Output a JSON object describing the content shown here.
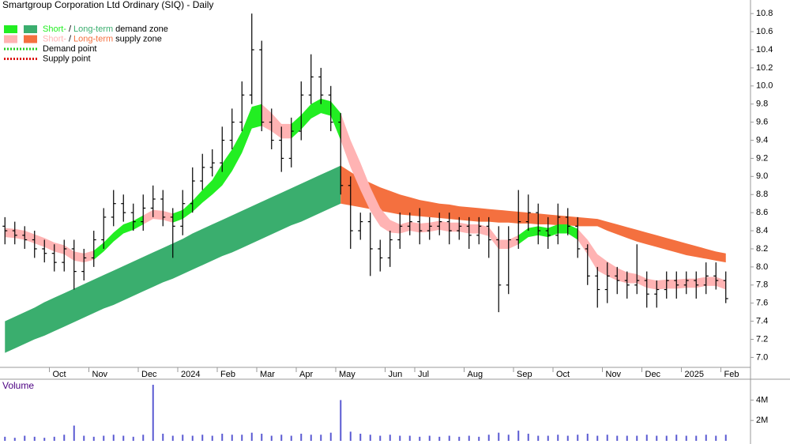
{
  "chart_data": {
    "type": "ohlc",
    "title": "Smartgroup Corporation Ltd Ordinary (SIQ) - Daily",
    "categories": [
      null,
      null,
      null,
      null,
      null,
      "Oct",
      null,
      null,
      null,
      "Nov",
      null,
      null,
      null,
      null,
      "Dec",
      null,
      null,
      null,
      "2024",
      null,
      null,
      null,
      "Feb",
      null,
      null,
      null,
      "Mar",
      null,
      null,
      null,
      "Apr",
      null,
      null,
      null,
      "May",
      null,
      null,
      null,
      null,
      "Jun",
      null,
      null,
      "Jul",
      null,
      null,
      null,
      null,
      "Aug",
      null,
      null,
      null,
      null,
      "Sep",
      null,
      null,
      null,
      "Oct",
      null,
      null,
      null,
      null,
      "Nov",
      null,
      null,
      null,
      "Dec",
      null,
      null,
      null,
      "2025",
      null,
      null,
      null,
      "Feb"
    ],
    "open": [
      8.45,
      8.4,
      8.35,
      8.3,
      8.2,
      8.15,
      8.05,
      8.2,
      7.95,
      8.1,
      8.3,
      8.55,
      8.7,
      8.6,
      8.5,
      8.65,
      8.75,
      8.55,
      8.45,
      8.7,
      8.95,
      9.1,
      9.15,
      9.4,
      9.6,
      9.9,
      10.4,
      9.6,
      9.4,
      9.2,
      9.5,
      9.9,
      10.1,
      9.9,
      9.6,
      8.9,
      8.4,
      8.5,
      8.2,
      8.1,
      8.3,
      8.45,
      8.5,
      8.4,
      8.45,
      8.5,
      8.4,
      8.45,
      8.35,
      8.45,
      8.3,
      7.8,
      8.3,
      8.5,
      8.6,
      8.4,
      8.35,
      8.55,
      8.45,
      8.2,
      7.9,
      7.75,
      7.9,
      7.85,
      7.8,
      7.85,
      7.7,
      7.75,
      7.85,
      7.8,
      7.85,
      7.8,
      7.9,
      7.85
    ],
    "high": [
      8.55,
      8.5,
      8.45,
      8.4,
      8.3,
      8.25,
      8.3,
      8.3,
      8.2,
      8.4,
      8.65,
      8.85,
      8.8,
      8.7,
      8.8,
      8.9,
      8.85,
      8.65,
      8.85,
      9.1,
      9.25,
      9.3,
      9.55,
      9.75,
      10.05,
      10.8,
      10.5,
      9.75,
      9.55,
      9.65,
      10.05,
      10.35,
      10.2,
      10.0,
      9.7,
      9.0,
      8.6,
      8.6,
      8.3,
      8.4,
      8.6,
      8.6,
      8.65,
      8.55,
      8.6,
      8.6,
      8.55,
      8.55,
      8.55,
      8.55,
      8.45,
      8.45,
      8.85,
      8.8,
      8.7,
      8.55,
      8.7,
      8.65,
      8.55,
      8.25,
      8.0,
      8.05,
      8.0,
      7.95,
      8.25,
      7.95,
      7.85,
      7.95,
      7.95,
      7.95,
      7.95,
      8.05,
      8.05,
      7.95
    ],
    "low": [
      8.25,
      8.25,
      8.2,
      8.1,
      8.05,
      7.95,
      7.95,
      7.75,
      7.85,
      8.0,
      8.2,
      8.45,
      8.5,
      8.4,
      8.4,
      8.55,
      8.45,
      8.1,
      8.35,
      8.6,
      8.85,
      9.0,
      9.05,
      9.3,
      9.5,
      9.8,
      9.5,
      9.3,
      9.05,
      9.1,
      9.4,
      9.8,
      9.8,
      9.5,
      8.8,
      8.2,
      8.3,
      7.9,
      7.95,
      8.0,
      8.2,
      8.35,
      8.25,
      8.3,
      8.35,
      8.25,
      8.3,
      8.2,
      8.25,
      8.1,
      7.5,
      7.7,
      8.2,
      8.4,
      8.25,
      8.2,
      8.25,
      8.35,
      8.1,
      7.8,
      7.55,
      7.6,
      7.7,
      7.65,
      7.7,
      7.55,
      7.55,
      7.65,
      7.65,
      7.7,
      7.65,
      7.7,
      7.75,
      7.6
    ],
    "close": [
      8.4,
      8.35,
      8.3,
      8.2,
      8.15,
      8.05,
      8.2,
      7.95,
      8.1,
      8.3,
      8.55,
      8.7,
      8.6,
      8.5,
      8.65,
      8.75,
      8.55,
      8.45,
      8.7,
      8.95,
      9.1,
      9.15,
      9.4,
      9.6,
      9.9,
      10.4,
      9.6,
      9.4,
      9.2,
      9.5,
      9.9,
      10.1,
      9.9,
      9.6,
      8.9,
      8.4,
      8.5,
      8.2,
      8.1,
      8.3,
      8.45,
      8.5,
      8.4,
      8.45,
      8.5,
      8.4,
      8.45,
      8.35,
      8.45,
      8.3,
      7.8,
      8.3,
      8.5,
      8.6,
      8.4,
      8.35,
      8.55,
      8.45,
      8.2,
      7.9,
      7.75,
      7.9,
      7.85,
      7.8,
      7.85,
      7.7,
      7.75,
      7.85,
      7.8,
      7.85,
      7.8,
      7.9,
      7.85,
      7.65
    ],
    "color": "#000000",
    "ylim": [
      6.89,
      10.95
    ],
    "yticks": [
      {
        "value": 7,
        "label": "7.0"
      },
      7.2,
      7.4,
      7.6,
      7.8,
      {
        "value": 8,
        "label": "8.0"
      },
      8.2,
      8.4,
      8.6,
      8.8,
      {
        "value": 9,
        "label": "9.0"
      },
      9.2,
      9.4,
      9.6,
      9.8,
      {
        "value": 10,
        "label": "10.0"
      },
      10.2,
      10.4,
      10.6,
      10.8
    ],
    "zones": [
      {
        "row": "demand zone",
        "separator": "/",
        "short": {
          "name": "Short-",
          "color": "#22ee22",
          "lower": [
            null,
            null,
            null,
            null,
            null,
            null,
            null,
            null,
            null,
            8.08,
            8.17,
            8.28,
            8.37,
            8.41,
            8.47,
            null,
            null,
            8.49,
            8.53,
            8.61,
            8.71,
            8.8,
            8.9,
            9.06,
            9.26,
            9.53,
            9.56,
            null,
            null,
            9.42,
            9.52,
            9.64,
            9.7,
            9.67,
            9.4,
            null,
            null,
            null,
            null,
            null,
            null,
            null,
            null,
            null,
            null,
            null,
            null,
            null,
            null,
            null,
            null,
            null,
            8.25,
            8.33,
            8.35,
            8.33,
            8.37,
            8.37,
            8.3,
            null,
            null,
            null,
            null,
            null,
            null,
            null,
            null,
            null,
            null,
            null,
            null,
            null,
            null,
            null
          ],
          "upper": [
            null,
            null,
            null,
            null,
            null,
            null,
            null,
            null,
            null,
            8.18,
            8.27,
            8.38,
            8.47,
            8.51,
            8.57,
            null,
            null,
            8.59,
            8.63,
            8.73,
            8.85,
            8.96,
            9.14,
            9.3,
            9.5,
            9.77,
            9.8,
            null,
            null,
            9.58,
            9.68,
            9.8,
            9.86,
            9.83,
            9.7,
            null,
            null,
            null,
            null,
            null,
            null,
            null,
            null,
            null,
            null,
            null,
            null,
            null,
            null,
            null,
            null,
            null,
            8.35,
            8.43,
            8.45,
            8.43,
            8.47,
            8.47,
            8.42,
            null,
            null,
            null,
            null,
            null,
            null,
            null,
            null,
            null,
            null,
            null,
            null,
            null,
            null,
            null
          ]
        },
        "long": {
          "name": "Long-term",
          "color": "#3aae6e",
          "lower": [
            7.05,
            7.1,
            7.15,
            7.2,
            7.24,
            7.29,
            7.34,
            7.39,
            7.44,
            7.49,
            7.54,
            7.58,
            7.63,
            7.68,
            7.73,
            7.78,
            7.83,
            7.87,
            7.92,
            7.97,
            8.02,
            8.07,
            8.12,
            8.16,
            8.21,
            8.26,
            8.31,
            8.36,
            8.41,
            8.46,
            8.5,
            8.55,
            8.6,
            8.65,
            8.7,
            null,
            null,
            null,
            null,
            null,
            null,
            null,
            null,
            null,
            null,
            null,
            null,
            null,
            null,
            null,
            null,
            null,
            null,
            null,
            null,
            null,
            null,
            null,
            null,
            null,
            null,
            null,
            null,
            null,
            null,
            null,
            null,
            null,
            null,
            null,
            null,
            null,
            null,
            null
          ],
          "upper": [
            7.4,
            7.45,
            7.5,
            7.55,
            7.61,
            7.66,
            7.71,
            7.76,
            7.81,
            7.86,
            7.91,
            7.96,
            8.01,
            8.06,
            8.11,
            8.16,
            8.21,
            8.26,
            8.31,
            8.37,
            8.42,
            8.47,
            8.52,
            8.57,
            8.62,
            8.67,
            8.72,
            8.77,
            8.82,
            8.87,
            8.92,
            8.97,
            9.02,
            9.07,
            9.12,
            null,
            null,
            null,
            null,
            null,
            null,
            null,
            null,
            null,
            null,
            null,
            null,
            null,
            null,
            null,
            null,
            null,
            null,
            null,
            null,
            null,
            null,
            null,
            null,
            null,
            null,
            null,
            null,
            null,
            null,
            null,
            null,
            null,
            null,
            null,
            null,
            null,
            null,
            null
          ]
        }
      },
      {
        "row": "supply zone",
        "separator": "/",
        "short": {
          "name": "Short-",
          "color": "#ffb3b3",
          "lower": [
            8.33,
            8.32,
            8.3,
            8.26,
            8.22,
            8.17,
            8.14,
            8.07,
            8.05,
            8.08,
            null,
            null,
            null,
            null,
            8.47,
            8.53,
            8.52,
            8.49,
            null,
            null,
            null,
            null,
            null,
            null,
            null,
            null,
            9.56,
            9.5,
            9.42,
            9.42,
            null,
            null,
            null,
            null,
            9.4,
            9.1,
            8.85,
            8.62,
            8.45,
            8.38,
            8.37,
            8.4,
            8.38,
            8.39,
            8.41,
            8.39,
            8.39,
            8.37,
            8.37,
            8.34,
            8.2,
            8.2,
            8.25,
            null,
            null,
            null,
            null,
            null,
            8.3,
            8.14,
            7.96,
            7.9,
            7.85,
            7.82,
            7.82,
            7.77,
            7.75,
            7.76,
            7.76,
            7.77,
            7.77,
            7.79,
            7.79,
            7.75
          ],
          "upper": [
            8.43,
            8.42,
            8.4,
            8.36,
            8.32,
            8.27,
            8.24,
            8.17,
            8.15,
            8.18,
            null,
            null,
            null,
            null,
            8.57,
            8.63,
            8.62,
            8.59,
            null,
            null,
            null,
            null,
            null,
            null,
            null,
            null,
            9.8,
            9.7,
            9.58,
            9.58,
            null,
            null,
            null,
            null,
            9.7,
            9.4,
            9.15,
            8.88,
            8.65,
            8.52,
            8.47,
            8.5,
            8.48,
            8.49,
            8.51,
            8.49,
            8.49,
            8.47,
            8.47,
            8.44,
            8.3,
            8.3,
            8.35,
            null,
            null,
            null,
            null,
            null,
            8.42,
            8.3,
            8.14,
            8.06,
            7.99,
            7.94,
            7.92,
            7.87,
            7.85,
            7.86,
            7.86,
            7.87,
            7.87,
            7.89,
            7.89,
            7.85
          ]
        },
        "long": {
          "name": "Long-term",
          "color": "#f4703f",
          "lower": [
            null,
            null,
            null,
            null,
            null,
            null,
            null,
            null,
            null,
            null,
            null,
            null,
            null,
            null,
            null,
            null,
            null,
            null,
            null,
            null,
            null,
            null,
            null,
            null,
            null,
            null,
            null,
            null,
            null,
            null,
            null,
            null,
            null,
            null,
            8.7,
            8.68,
            8.66,
            8.64,
            8.62,
            8.6,
            8.58,
            8.57,
            8.56,
            8.55,
            8.54,
            8.53,
            8.52,
            8.51,
            8.5,
            8.5,
            8.49,
            8.49,
            8.48,
            8.48,
            8.47,
            8.47,
            8.46,
            8.46,
            8.45,
            8.45,
            8.45,
            8.4,
            8.36,
            8.32,
            8.28,
            8.25,
            8.22,
            8.19,
            8.16,
            8.13,
            8.11,
            8.09,
            8.07,
            8.05
          ],
          "upper": [
            null,
            null,
            null,
            null,
            null,
            null,
            null,
            null,
            null,
            null,
            null,
            null,
            null,
            null,
            null,
            null,
            null,
            null,
            null,
            null,
            null,
            null,
            null,
            null,
            null,
            null,
            null,
            null,
            null,
            null,
            null,
            null,
            null,
            null,
            9.12,
            9.05,
            8.98,
            8.93,
            8.88,
            8.84,
            8.8,
            8.77,
            8.74,
            8.72,
            8.7,
            8.69,
            8.67,
            8.66,
            8.65,
            8.64,
            8.63,
            8.62,
            8.61,
            8.6,
            8.59,
            8.58,
            8.57,
            8.56,
            8.55,
            8.54,
            8.53,
            8.5,
            8.47,
            8.44,
            8.41,
            8.38,
            8.35,
            8.32,
            8.29,
            8.26,
            8.23,
            8.2,
            8.17,
            8.15
          ]
        }
      }
    ],
    "points": [
      {
        "name": "Demand point",
        "color": "#22cc22"
      },
      {
        "name": "Supply point",
        "color": "#dd1111"
      }
    ],
    "volume": {
      "title": "Volume",
      "color": "#5a5ad2",
      "values": [
        0.4,
        0.3,
        0.5,
        0.4,
        0.3,
        0.4,
        0.6,
        1.5,
        0.5,
        0.4,
        0.5,
        0.6,
        0.5,
        0.4,
        0.6,
        5.5,
        0.7,
        0.5,
        0.6,
        0.5,
        0.6,
        0.5,
        0.7,
        0.6,
        0.6,
        0.8,
        0.7,
        0.5,
        0.6,
        0.5,
        0.7,
        0.6,
        0.6,
        0.8,
        4.0,
        0.9,
        0.7,
        0.6,
        0.5,
        0.6,
        0.5,
        0.5,
        0.4,
        0.5,
        0.4,
        0.5,
        0.4,
        0.5,
        0.4,
        0.6,
        0.8,
        0.6,
        1.0,
        0.7,
        0.5,
        0.5,
        0.6,
        0.5,
        0.6,
        0.7,
        0.5,
        0.6,
        0.5,
        0.5,
        0.5,
        0.6,
        0.5,
        0.5,
        0.6,
        0.5,
        0.5,
        0.6,
        0.5,
        0.6
      ],
      "ylim": [
        0,
        6.2
      ],
      "yticks": [
        {
          "value": 4,
          "label": "4M"
        },
        {
          "value": 2,
          "label": "2M"
        }
      ]
    }
  }
}
